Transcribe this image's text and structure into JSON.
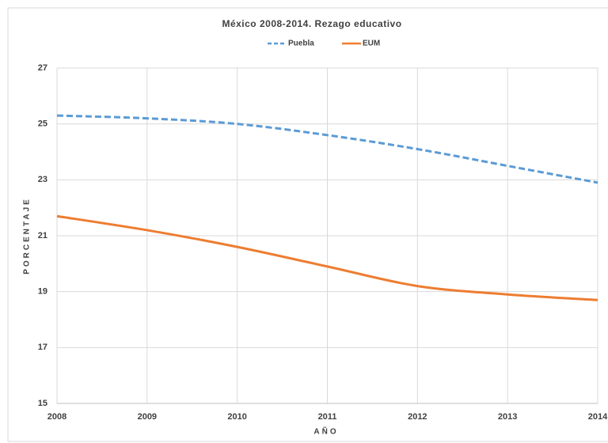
{
  "chart_data": {
    "type": "line",
    "title": "México 2008-2014.  Rezago educativo",
    "x_label": "AÑO",
    "y_label": "PORCENTAJE",
    "x": [
      2008,
      2009,
      2010,
      2011,
      2012,
      2013,
      2014
    ],
    "xlim": [
      2008,
      2014
    ],
    "xticks": [
      2008,
      2009,
      2010,
      2011,
      2012,
      2013,
      2014
    ],
    "ylim": [
      15,
      27
    ],
    "yticks": [
      15,
      17,
      19,
      21,
      23,
      25,
      27
    ],
    "grid": true,
    "legend": "top",
    "series": [
      {
        "name": "Puebla",
        "color": "#5b9bd5",
        "dash": true,
        "values": [
          25.3,
          25.2,
          25.0,
          24.6,
          24.1,
          23.5,
          22.9
        ]
      },
      {
        "name": "EUM",
        "color": "#ed7d31",
        "dash": false,
        "values": [
          21.7,
          21.2,
          20.6,
          19.9,
          19.2,
          18.9,
          18.7
        ]
      }
    ]
  }
}
